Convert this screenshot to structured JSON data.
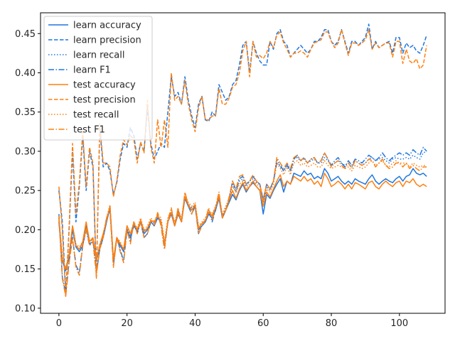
{
  "chart_data": {
    "type": "line",
    "title": "",
    "xlabel": "",
    "ylabel": "",
    "xlim": [
      -5.4,
      113.4
    ],
    "ylim": [
      0.0935,
      0.4765
    ],
    "xticks": [
      0,
      20,
      40,
      60,
      80,
      100
    ],
    "yticks": [
      0.1,
      0.15,
      0.2,
      0.25,
      0.3,
      0.35,
      0.4,
      0.45
    ],
    "xtick_labels": [
      "0",
      "20",
      "40",
      "60",
      "80",
      "100"
    ],
    "ytick_labels": [
      "0.10",
      "0.15",
      "0.20",
      "0.25",
      "0.30",
      "0.35",
      "0.40",
      "0.45"
    ],
    "grid": false,
    "legend_position": "top-left",
    "x": [
      0,
      1,
      2,
      3,
      4,
      5,
      6,
      7,
      8,
      9,
      10,
      11,
      12,
      13,
      14,
      15,
      16,
      17,
      18,
      19,
      20,
      21,
      22,
      23,
      24,
      25,
      26,
      27,
      28,
      29,
      30,
      31,
      32,
      33,
      34,
      35,
      36,
      37,
      38,
      39,
      40,
      41,
      42,
      43,
      44,
      45,
      46,
      47,
      48,
      49,
      50,
      51,
      52,
      53,
      54,
      55,
      56,
      57,
      58,
      59,
      60,
      61,
      62,
      63,
      64,
      65,
      66,
      67,
      68,
      69,
      70,
      71,
      72,
      73,
      74,
      75,
      76,
      77,
      78,
      79,
      80,
      81,
      82,
      83,
      84,
      85,
      86,
      87,
      88,
      89,
      90,
      91,
      92,
      93,
      94,
      95,
      96,
      97,
      98,
      99,
      100,
      101,
      102,
      103,
      104,
      105,
      106,
      107,
      108
    ],
    "series": [
      {
        "name": "learn accuracy",
        "color": "#1f77e0",
        "dash": "solid",
        "values": [
          0.21,
          0.16,
          0.148,
          0.165,
          0.2,
          0.178,
          0.172,
          0.18,
          0.205,
          0.182,
          0.185,
          0.16,
          0.178,
          0.19,
          0.21,
          0.228,
          0.16,
          0.188,
          0.18,
          0.172,
          0.2,
          0.19,
          0.205,
          0.198,
          0.21,
          0.195,
          0.2,
          0.21,
          0.205,
          0.215,
          0.21,
          0.18,
          0.21,
          0.22,
          0.205,
          0.22,
          0.21,
          0.24,
          0.23,
          0.225,
          0.23,
          0.2,
          0.205,
          0.21,
          0.22,
          0.215,
          0.225,
          0.24,
          0.215,
          0.225,
          0.235,
          0.245,
          0.238,
          0.25,
          0.258,
          0.248,
          0.255,
          0.26,
          0.255,
          0.25,
          0.22,
          0.245,
          0.24,
          0.25,
          0.258,
          0.265,
          0.248,
          0.262,
          0.258,
          0.272,
          0.27,
          0.268,
          0.275,
          0.27,
          0.272,
          0.265,
          0.268,
          0.265,
          0.278,
          0.272,
          0.262,
          0.265,
          0.268,
          0.262,
          0.258,
          0.262,
          0.258,
          0.265,
          0.262,
          0.26,
          0.258,
          0.265,
          0.27,
          0.262,
          0.258,
          0.262,
          0.265,
          0.262,
          0.26,
          0.265,
          0.268,
          0.262,
          0.268,
          0.27,
          0.278,
          0.272,
          0.27,
          0.272,
          0.268
        ]
      },
      {
        "name": "learn precision",
        "color": "#1f77e0",
        "dash": "dashed",
        "values": [
          0.25,
          0.21,
          0.12,
          0.2,
          0.3,
          0.21,
          0.255,
          0.32,
          0.25,
          0.3,
          0.28,
          0.14,
          0.33,
          0.28,
          0.285,
          0.275,
          0.245,
          0.26,
          0.29,
          0.31,
          0.305,
          0.33,
          0.32,
          0.29,
          0.31,
          0.3,
          0.355,
          0.31,
          0.29,
          0.3,
          0.31,
          0.305,
          0.35,
          0.395,
          0.37,
          0.375,
          0.36,
          0.395,
          0.365,
          0.345,
          0.33,
          0.36,
          0.37,
          0.34,
          0.338,
          0.35,
          0.345,
          0.385,
          0.375,
          0.365,
          0.37,
          0.385,
          0.39,
          0.41,
          0.435,
          0.44,
          0.4,
          0.44,
          0.425,
          0.415,
          0.41,
          0.41,
          0.44,
          0.43,
          0.45,
          0.455,
          0.44,
          0.435,
          0.42,
          0.425,
          0.43,
          0.435,
          0.43,
          0.425,
          0.43,
          0.44,
          0.44,
          0.445,
          0.455,
          0.455,
          0.44,
          0.435,
          0.44,
          0.455,
          0.44,
          0.425,
          0.44,
          0.44,
          0.435,
          0.44,
          0.445,
          0.462,
          0.43,
          0.44,
          0.432,
          0.435,
          0.438,
          0.44,
          0.425,
          0.445,
          0.445,
          0.425,
          0.438,
          0.432,
          0.435,
          0.428,
          0.425,
          0.435,
          0.448
        ]
      },
      {
        "name": "learn recall",
        "color": "#1f77e0",
        "dash": "dotted",
        "values": [
          0.215,
          0.165,
          0.15,
          0.17,
          0.205,
          0.18,
          0.175,
          0.182,
          0.208,
          0.185,
          0.188,
          0.162,
          0.18,
          0.192,
          0.212,
          0.23,
          0.162,
          0.19,
          0.182,
          0.175,
          0.202,
          0.192,
          0.208,
          0.2,
          0.212,
          0.198,
          0.202,
          0.212,
          0.208,
          0.218,
          0.212,
          0.182,
          0.212,
          0.222,
          0.208,
          0.222,
          0.212,
          0.242,
          0.232,
          0.228,
          0.232,
          0.202,
          0.208,
          0.212,
          0.222,
          0.218,
          0.228,
          0.242,
          0.218,
          0.228,
          0.238,
          0.258,
          0.248,
          0.262,
          0.265,
          0.255,
          0.262,
          0.265,
          0.26,
          0.258,
          0.235,
          0.255,
          0.25,
          0.262,
          0.29,
          0.28,
          0.275,
          0.285,
          0.275,
          0.29,
          0.292,
          0.288,
          0.29,
          0.285,
          0.288,
          0.29,
          0.285,
          0.285,
          0.292,
          0.288,
          0.282,
          0.285,
          0.288,
          0.285,
          0.282,
          0.285,
          0.28,
          0.288,
          0.285,
          0.282,
          0.285,
          0.29,
          0.292,
          0.288,
          0.29,
          0.292,
          0.288,
          0.285,
          0.29,
          0.292,
          0.29,
          0.29,
          0.292,
          0.29,
          0.295,
          0.292,
          0.29,
          0.298,
          0.3
        ]
      },
      {
        "name": "learn F1",
        "color": "#1f77e0",
        "dash": "dashdot",
        "values": [
          0.22,
          0.14,
          0.118,
          0.16,
          0.19,
          0.155,
          0.145,
          0.18,
          0.2,
          0.18,
          0.185,
          0.145,
          0.175,
          0.19,
          0.215,
          0.225,
          0.155,
          0.19,
          0.175,
          0.16,
          0.2,
          0.185,
          0.21,
          0.195,
          0.21,
          0.19,
          0.195,
          0.21,
          0.205,
          0.22,
          0.205,
          0.175,
          0.21,
          0.225,
          0.205,
          0.225,
          0.21,
          0.245,
          0.23,
          0.22,
          0.23,
          0.195,
          0.205,
          0.21,
          0.225,
          0.21,
          0.225,
          0.245,
          0.215,
          0.225,
          0.24,
          0.262,
          0.25,
          0.265,
          0.268,
          0.258,
          0.262,
          0.268,
          0.262,
          0.258,
          0.238,
          0.258,
          0.252,
          0.262,
          0.285,
          0.282,
          0.275,
          0.282,
          0.275,
          0.29,
          0.295,
          0.288,
          0.292,
          0.285,
          0.29,
          0.292,
          0.285,
          0.288,
          0.298,
          0.29,
          0.282,
          0.288,
          0.292,
          0.285,
          0.28,
          0.288,
          0.282,
          0.29,
          0.288,
          0.285,
          0.29,
          0.295,
          0.292,
          0.288,
          0.292,
          0.298,
          0.292,
          0.288,
          0.292,
          0.295,
          0.298,
          0.295,
          0.298,
          0.295,
          0.302,
          0.298,
          0.295,
          0.305,
          0.3
        ]
      },
      {
        "name": "test accuracy",
        "color": "#ff7f0e",
        "dash": "solid",
        "values": [
          0.215,
          0.162,
          0.15,
          0.168,
          0.205,
          0.18,
          0.175,
          0.185,
          0.21,
          0.185,
          0.19,
          0.162,
          0.18,
          0.195,
          0.212,
          0.23,
          0.162,
          0.19,
          0.182,
          0.175,
          0.205,
          0.195,
          0.208,
          0.2,
          0.212,
          0.198,
          0.202,
          0.212,
          0.21,
          0.218,
          0.21,
          0.182,
          0.21,
          0.222,
          0.205,
          0.222,
          0.21,
          0.242,
          0.232,
          0.225,
          0.232,
          0.202,
          0.208,
          0.212,
          0.222,
          0.218,
          0.228,
          0.242,
          0.218,
          0.225,
          0.238,
          0.25,
          0.24,
          0.252,
          0.26,
          0.25,
          0.255,
          0.262,
          0.255,
          0.25,
          0.23,
          0.248,
          0.242,
          0.252,
          0.262,
          0.27,
          0.255,
          0.262,
          0.258,
          0.268,
          0.265,
          0.262,
          0.268,
          0.262,
          0.265,
          0.258,
          0.262,
          0.255,
          0.272,
          0.265,
          0.255,
          0.258,
          0.262,
          0.258,
          0.252,
          0.258,
          0.252,
          0.26,
          0.258,
          0.255,
          0.252,
          0.26,
          0.262,
          0.255,
          0.252,
          0.258,
          0.262,
          0.258,
          0.255,
          0.26,
          0.262,
          0.255,
          0.262,
          0.26,
          0.265,
          0.258,
          0.255,
          0.258,
          0.255
        ]
      },
      {
        "name": "test precision",
        "color": "#ff7f0e",
        "dash": "dashed",
        "values": [
          0.255,
          0.2,
          0.115,
          0.205,
          0.31,
          0.22,
          0.26,
          0.325,
          0.255,
          0.305,
          0.285,
          0.138,
          0.335,
          0.285,
          0.285,
          0.28,
          0.242,
          0.262,
          0.295,
          0.315,
          0.308,
          0.32,
          0.315,
          0.285,
          0.312,
          0.298,
          0.365,
          0.305,
          0.285,
          0.34,
          0.305,
          0.34,
          0.305,
          0.4,
          0.365,
          0.37,
          0.36,
          0.39,
          0.36,
          0.34,
          0.325,
          0.355,
          0.37,
          0.34,
          0.34,
          0.345,
          0.345,
          0.38,
          0.36,
          0.36,
          0.368,
          0.382,
          0.385,
          0.4,
          0.428,
          0.44,
          0.395,
          0.44,
          0.42,
          0.422,
          0.418,
          0.425,
          0.44,
          0.432,
          0.448,
          0.452,
          0.438,
          0.43,
          0.42,
          0.425,
          0.425,
          0.428,
          0.425,
          0.42,
          0.43,
          0.438,
          0.44,
          0.442,
          0.452,
          0.452,
          0.44,
          0.432,
          0.438,
          0.455,
          0.438,
          0.422,
          0.438,
          0.438,
          0.435,
          0.438,
          0.442,
          0.455,
          0.43,
          0.438,
          0.432,
          0.435,
          0.438,
          0.438,
          0.42,
          0.44,
          0.44,
          0.412,
          0.43,
          0.415,
          0.412,
          0.418,
          0.405,
          0.41,
          0.435
        ]
      },
      {
        "name": "test recall",
        "color": "#ff7f0e",
        "dash": "dotted",
        "values": [
          0.212,
          0.165,
          0.15,
          0.17,
          0.205,
          0.182,
          0.178,
          0.185,
          0.208,
          0.185,
          0.188,
          0.162,
          0.182,
          0.195,
          0.215,
          0.232,
          0.162,
          0.19,
          0.185,
          0.175,
          0.205,
          0.195,
          0.21,
          0.202,
          0.215,
          0.2,
          0.205,
          0.215,
          0.21,
          0.22,
          0.215,
          0.185,
          0.215,
          0.225,
          0.21,
          0.225,
          0.215,
          0.245,
          0.235,
          0.23,
          0.235,
          0.205,
          0.21,
          0.215,
          0.225,
          0.22,
          0.23,
          0.245,
          0.22,
          0.23,
          0.24,
          0.255,
          0.248,
          0.258,
          0.262,
          0.252,
          0.258,
          0.262,
          0.258,
          0.255,
          0.235,
          0.252,
          0.248,
          0.258,
          0.285,
          0.278,
          0.27,
          0.28,
          0.27,
          0.285,
          0.288,
          0.282,
          0.285,
          0.28,
          0.282,
          0.285,
          0.28,
          0.28,
          0.288,
          0.282,
          0.278,
          0.28,
          0.282,
          0.28,
          0.278,
          0.28,
          0.275,
          0.282,
          0.28,
          0.278,
          0.28,
          0.285,
          0.288,
          0.282,
          0.285,
          0.288,
          0.282,
          0.28,
          0.285,
          0.288,
          0.285,
          0.285,
          0.285,
          0.28,
          0.285,
          0.282,
          0.28,
          0.282,
          0.282
        ]
      },
      {
        "name": "test F1",
        "color": "#ff7f0e",
        "dash": "dashdot",
        "values": [
          0.218,
          0.138,
          0.115,
          0.158,
          0.19,
          0.152,
          0.142,
          0.18,
          0.202,
          0.18,
          0.185,
          0.142,
          0.175,
          0.19,
          0.215,
          0.228,
          0.152,
          0.19,
          0.172,
          0.158,
          0.2,
          0.182,
          0.21,
          0.195,
          0.212,
          0.19,
          0.195,
          0.212,
          0.205,
          0.222,
          0.205,
          0.175,
          0.212,
          0.228,
          0.205,
          0.228,
          0.21,
          0.248,
          0.232,
          0.22,
          0.232,
          0.195,
          0.205,
          0.212,
          0.228,
          0.212,
          0.228,
          0.248,
          0.215,
          0.225,
          0.242,
          0.262,
          0.252,
          0.268,
          0.27,
          0.258,
          0.262,
          0.27,
          0.262,
          0.258,
          0.238,
          0.258,
          0.252,
          0.262,
          0.292,
          0.285,
          0.278,
          0.285,
          0.278,
          0.292,
          0.295,
          0.288,
          0.292,
          0.285,
          0.29,
          0.292,
          0.285,
          0.288,
          0.298,
          0.29,
          0.28,
          0.285,
          0.288,
          0.282,
          0.278,
          0.285,
          0.278,
          0.288,
          0.285,
          0.282,
          0.285,
          0.29,
          0.288,
          0.28,
          0.285,
          0.29,
          0.282,
          0.278,
          0.28,
          0.285,
          0.285,
          0.28,
          0.285,
          0.278,
          0.282,
          0.278,
          0.275,
          0.28,
          0.28
        ]
      }
    ]
  }
}
